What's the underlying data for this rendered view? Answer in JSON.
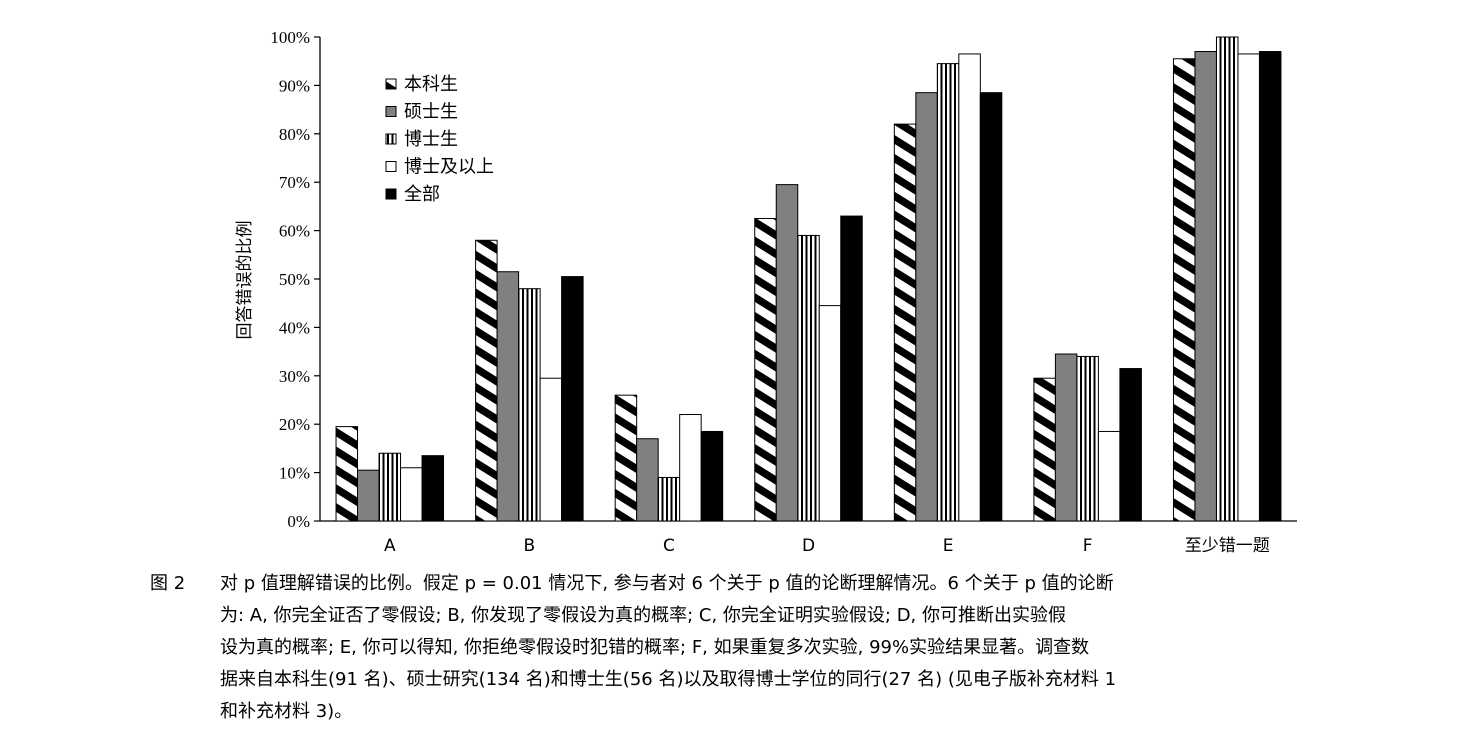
{
  "chart_data": {
    "type": "bar",
    "ylabel": "回答错误的比例",
    "ylim": [
      0,
      100
    ],
    "ytick_labels": [
      "0%",
      "10%",
      "20%",
      "30%",
      "40%",
      "50%",
      "60%",
      "70%",
      "80%",
      "90%",
      "100%"
    ],
    "categories": [
      "A",
      "B",
      "C",
      "D",
      "E",
      "F",
      "至少错一题"
    ],
    "series": [
      {
        "name": "本科生",
        "pattern": "diagonal",
        "values": [
          19.5,
          58,
          26,
          62.5,
          82,
          29.5,
          95.5
        ]
      },
      {
        "name": "硕士生",
        "pattern": "gray",
        "color": "#808080",
        "values": [
          10.5,
          51.5,
          17,
          69.5,
          88.5,
          34.5,
          97
        ]
      },
      {
        "name": "博士生",
        "pattern": "vertical",
        "values": [
          14,
          48,
          9,
          59,
          94.5,
          34,
          100
        ]
      },
      {
        "name": "博士及以上",
        "pattern": "white",
        "color": "#ffffff",
        "values": [
          11,
          29.5,
          22,
          44.5,
          96.5,
          18.5,
          96.5
        ]
      },
      {
        "name": "全部",
        "pattern": "black",
        "color": "#000000",
        "values": [
          13.5,
          50.5,
          18.5,
          63,
          88.5,
          31.5,
          97
        ]
      }
    ],
    "legend_position": "top-left",
    "grid": false
  },
  "caption": {
    "figure_number": "图 2",
    "lines": [
      "对 p 值理解错误的比例。假定 p = 0.01 情况下, 参与者对 6 个关于 p 值的论断理解情况。6 个关于 p 值的论断",
      "为: A, 你完全证否了零假设; B, 你发现了零假设为真的概率; C, 你完全证明实验假设; D, 你可推断出实验假",
      "设为真的概率; E, 你可以得知, 你拒绝零假设时犯错的概率; F, 如果重复多次实验, 99%实验结果显著。调查数",
      "据来自本科生(91 名)、硕士研究(134 名)和博士生(56 名)以及取得博士学位的同行(27 名) (见电子版补充材料 1",
      "和补充材料 3)。"
    ]
  }
}
